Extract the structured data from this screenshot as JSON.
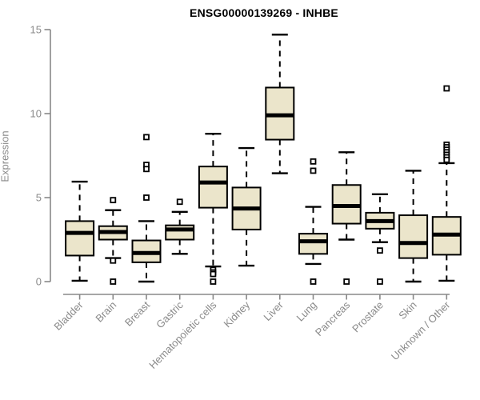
{
  "chart_data": {
    "type": "boxplot",
    "title": "ENSG00000139269 - INHBE",
    "ylabel": "Expression",
    "xlabel": "",
    "ylim": [
      0,
      15
    ],
    "yticks": [
      0,
      5,
      10,
      15
    ],
    "grid": false,
    "legend": false,
    "categories": [
      "Bladder",
      "Brain",
      "Breast",
      "Gastric",
      "Hematopoietic cells",
      "Kidney",
      "Liver",
      "Lung",
      "Pancreas",
      "Prostate",
      "Skin",
      "Unknown / Other"
    ],
    "series": [
      {
        "category": "Bladder",
        "whisker_low": 0.05,
        "q1": 1.55,
        "median": 2.9,
        "q3": 3.6,
        "whisker_high": 5.95,
        "outliers": []
      },
      {
        "category": "Brain",
        "whisker_low": 1.4,
        "q1": 2.5,
        "median": 2.95,
        "q3": 3.3,
        "whisker_high": 4.25,
        "outliers": [
          4.85,
          1.25,
          0.0
        ]
      },
      {
        "category": "Breast",
        "whisker_low": 0.0,
        "q1": 1.15,
        "median": 1.7,
        "q3": 2.45,
        "whisker_high": 3.6,
        "outliers": [
          8.6,
          6.95,
          6.7,
          5.0
        ]
      },
      {
        "category": "Gastric",
        "whisker_low": 1.65,
        "q1": 2.5,
        "median": 3.1,
        "q3": 3.35,
        "whisker_high": 4.15,
        "outliers": [
          4.75
        ]
      },
      {
        "category": "Hematopoietic cells",
        "whisker_low": 0.9,
        "q1": 4.4,
        "median": 5.9,
        "q3": 6.85,
        "whisker_high": 8.8,
        "outliers": [
          0.7,
          0.55,
          0.45,
          0.0
        ]
      },
      {
        "category": "Kidney",
        "whisker_low": 0.95,
        "q1": 3.1,
        "median": 4.35,
        "q3": 5.6,
        "whisker_high": 7.95,
        "outliers": []
      },
      {
        "category": "Liver",
        "whisker_low": 6.45,
        "q1": 8.45,
        "median": 9.9,
        "q3": 11.55,
        "whisker_high": 14.7,
        "outliers": []
      },
      {
        "category": "Lung",
        "whisker_low": 1.05,
        "q1": 1.65,
        "median": 2.4,
        "q3": 2.85,
        "whisker_high": 4.45,
        "outliers": [
          7.15,
          6.6,
          0.0
        ]
      },
      {
        "category": "Pancreas",
        "whisker_low": 2.5,
        "q1": 3.45,
        "median": 4.5,
        "q3": 5.75,
        "whisker_high": 7.7,
        "outliers": [
          0.0
        ]
      },
      {
        "category": "Prostate",
        "whisker_low": 2.35,
        "q1": 3.15,
        "median": 3.6,
        "q3": 4.1,
        "whisker_high": 5.2,
        "outliers": [
          1.85,
          0.0
        ]
      },
      {
        "category": "Skin",
        "whisker_low": 0.0,
        "q1": 1.4,
        "median": 2.3,
        "q3": 3.95,
        "whisker_high": 6.6,
        "outliers": []
      },
      {
        "category": "Unknown / Other",
        "whisker_low": 0.05,
        "q1": 1.6,
        "median": 2.8,
        "q3": 3.85,
        "whisker_high": 7.05,
        "outliers": [
          11.5,
          8.15,
          8.0,
          7.85,
          7.7,
          7.55,
          7.4,
          7.25
        ]
      }
    ],
    "colors": {
      "box_fill": "#EBE5CB",
      "box_stroke": "#000000",
      "median": "#000000",
      "whisker": "#000000",
      "outlier_stroke": "#000000",
      "outlier_fill": "#ffffff",
      "axis": "#888888",
      "tick_text": "#8a8a8a",
      "title_text": "#000000",
      "background": "#ffffff"
    }
  }
}
